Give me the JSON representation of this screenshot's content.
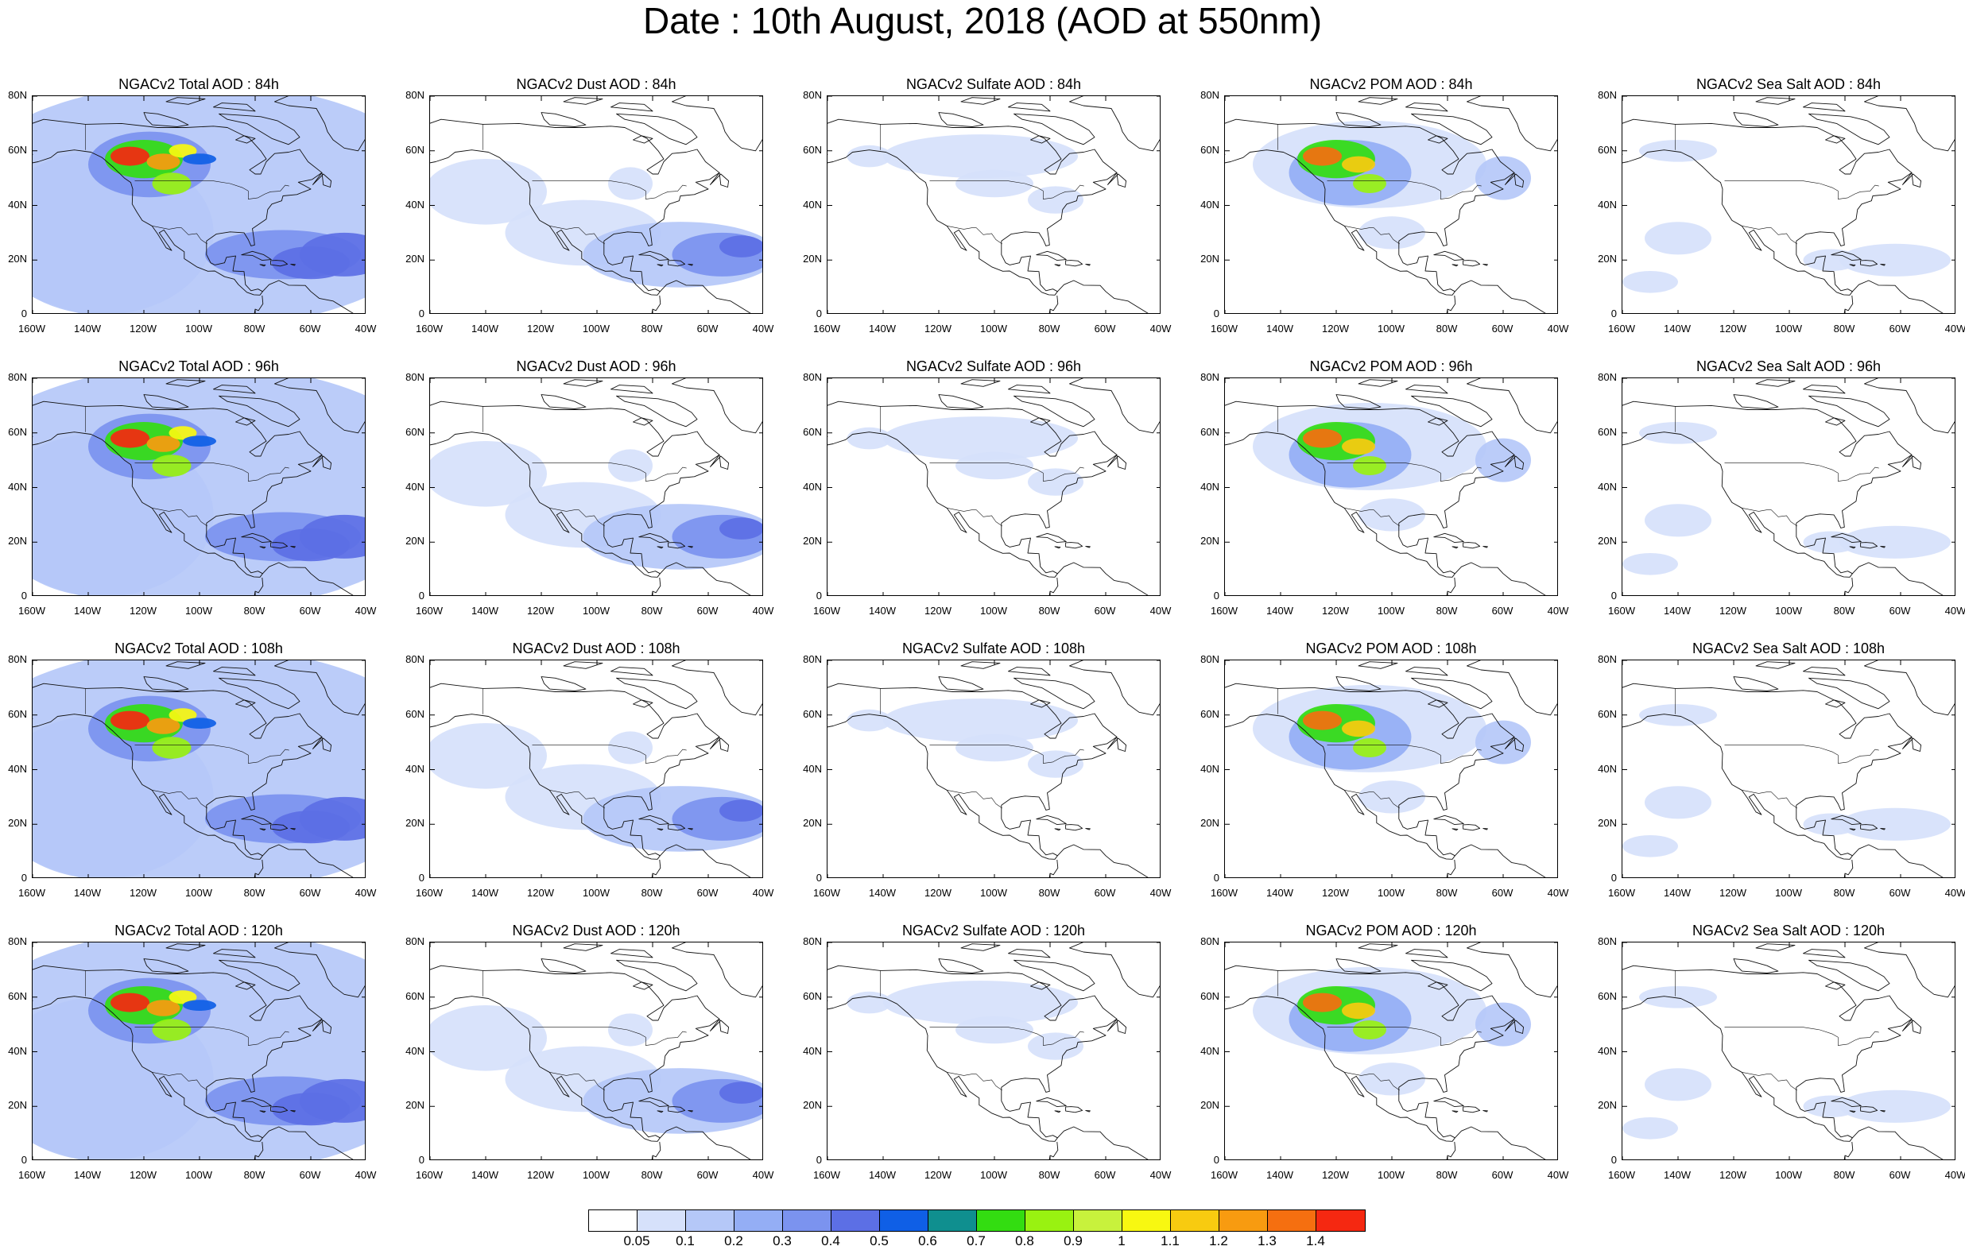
{
  "figure": {
    "title": "Date : 10th August, 2018 (AOD at 550nm)"
  },
  "axes": {
    "lon_ticks": [
      "160W",
      "140W",
      "120W",
      "100W",
      "80W",
      "60W",
      "40W"
    ],
    "lat_ticks": [
      "80N",
      "60N",
      "40N",
      "20N",
      "0"
    ],
    "lon_range": [
      -160,
      -40
    ],
    "lat_range": [
      0,
      80
    ]
  },
  "panels": [
    {
      "title": "NGACv2 Total AOD : 84h",
      "species": "total",
      "forecast_hour": 84
    },
    {
      "title": "NGACv2 Dust AOD : 84h",
      "species": "dust",
      "forecast_hour": 84
    },
    {
      "title": "NGACv2 Sulfate AOD : 84h",
      "species": "sulfate",
      "forecast_hour": 84
    },
    {
      "title": "NGACv2 POM AOD : 84h",
      "species": "pom",
      "forecast_hour": 84
    },
    {
      "title": "NGACv2 Sea Salt AOD : 84h",
      "species": "seasalt",
      "forecast_hour": 84
    },
    {
      "title": "NGACv2 Total AOD : 96h",
      "species": "total",
      "forecast_hour": 96
    },
    {
      "title": "NGACv2 Dust AOD : 96h",
      "species": "dust",
      "forecast_hour": 96
    },
    {
      "title": "NGACv2 Sulfate AOD : 96h",
      "species": "sulfate",
      "forecast_hour": 96
    },
    {
      "title": "NGACv2 POM AOD : 96h",
      "species": "pom",
      "forecast_hour": 96
    },
    {
      "title": "NGACv2 Sea Salt AOD : 96h",
      "species": "seasalt",
      "forecast_hour": 96
    },
    {
      "title": "NGACv2 Total AOD : 108h",
      "species": "total",
      "forecast_hour": 108
    },
    {
      "title": "NGACv2 Dust AOD : 108h",
      "species": "dust",
      "forecast_hour": 108
    },
    {
      "title": "NGACv2 Sulfate AOD : 108h",
      "species": "sulfate",
      "forecast_hour": 108
    },
    {
      "title": "NGACv2 POM AOD : 108h",
      "species": "pom",
      "forecast_hour": 108
    },
    {
      "title": "NGACv2 Sea Salt AOD : 108h",
      "species": "seasalt",
      "forecast_hour": 108
    },
    {
      "title": "NGACv2 Total AOD : 120h",
      "species": "total",
      "forecast_hour": 120
    },
    {
      "title": "NGACv2 Dust AOD : 120h",
      "species": "dust",
      "forecast_hour": 120
    },
    {
      "title": "NGACv2 Sulfate AOD : 120h",
      "species": "sulfate",
      "forecast_hour": 120
    },
    {
      "title": "NGACv2 POM AOD : 120h",
      "species": "pom",
      "forecast_hour": 120
    },
    {
      "title": "NGACv2 Sea Salt  AOD : 120h",
      "species": "seasalt",
      "forecast_hour": 120
    }
  ],
  "colorbar": {
    "labels": [
      "0.05",
      "0.1",
      "0.2",
      "0.3",
      "0.4",
      "0.5",
      "0.6",
      "0.7",
      "0.8",
      "0.9",
      "1",
      "1.1",
      "1.2",
      "1.3",
      "1.4"
    ],
    "colors": [
      "#ffffff",
      "#d6e1fb",
      "#b5c8f8",
      "#94aef5",
      "#7b93ef",
      "#5c6fe5",
      "#0f5fe6",
      "#0f8f8f",
      "#33dd11",
      "#99f211",
      "#c8f23c",
      "#f8f811",
      "#f8cb10",
      "#f89b10",
      "#f56f10",
      "#f52811"
    ]
  }
}
